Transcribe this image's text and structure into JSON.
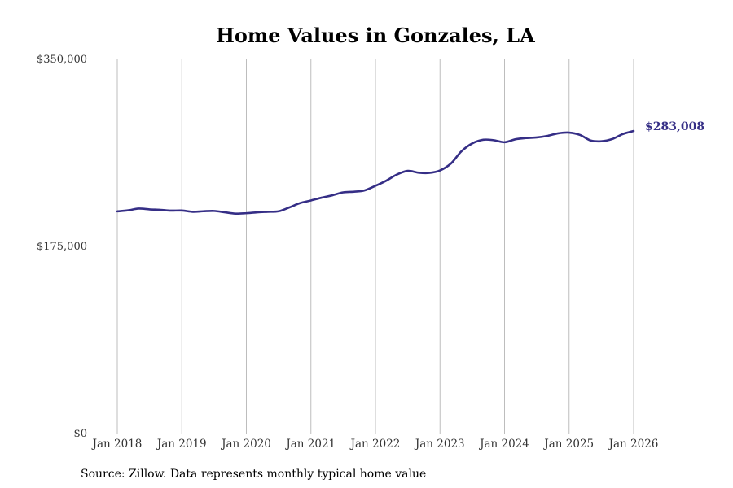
{
  "chart_data": {
    "type": "line",
    "title": "Home Values in Gonzales, LA",
    "xlabel": "",
    "ylabel": "",
    "ylim": [
      0,
      350000
    ],
    "y_ticks": [
      {
        "value": 0,
        "label": "$0"
      },
      {
        "value": 175000,
        "label": "$175,000"
      },
      {
        "value": 350000,
        "label": "$350,000"
      }
    ],
    "x_ticks": [
      {
        "value": 2018,
        "label": "Jan 2018"
      },
      {
        "value": 2019,
        "label": "Jan 2019"
      },
      {
        "value": 2020,
        "label": "Jan 2020"
      },
      {
        "value": 2021,
        "label": "Jan 2021"
      },
      {
        "value": 2022,
        "label": "Jan 2022"
      },
      {
        "value": 2023,
        "label": "Jan 2023"
      },
      {
        "value": 2024,
        "label": "Jan 2024"
      },
      {
        "value": 2025,
        "label": "Jan 2025"
      },
      {
        "value": 2026,
        "label": "Jan 2026"
      }
    ],
    "xlim": [
      2018,
      2026
    ],
    "grid": "vertical",
    "series": [
      {
        "name": "Typical home value",
        "color": "#352e86",
        "points": [
          [
            2018.0,
            207800
          ],
          [
            2018.17,
            208800
          ],
          [
            2018.33,
            210400
          ],
          [
            2018.5,
            209700
          ],
          [
            2018.67,
            209200
          ],
          [
            2018.83,
            208500
          ],
          [
            2019.0,
            208600
          ],
          [
            2019.17,
            207400
          ],
          [
            2019.33,
            207900
          ],
          [
            2019.5,
            208200
          ],
          [
            2019.67,
            206900
          ],
          [
            2019.83,
            205700
          ],
          [
            2020.0,
            206100
          ],
          [
            2020.17,
            206900
          ],
          [
            2020.33,
            207400
          ],
          [
            2020.5,
            207900
          ],
          [
            2020.67,
            211600
          ],
          [
            2020.83,
            215500
          ],
          [
            2021.0,
            218000
          ],
          [
            2021.17,
            220700
          ],
          [
            2021.33,
            222800
          ],
          [
            2021.5,
            225600
          ],
          [
            2021.67,
            226200
          ],
          [
            2021.83,
            227400
          ],
          [
            2022.0,
            231700
          ],
          [
            2022.17,
            236600
          ],
          [
            2022.33,
            242200
          ],
          [
            2022.5,
            245700
          ],
          [
            2022.67,
            244000
          ],
          [
            2022.83,
            243800
          ],
          [
            2023.0,
            246100
          ],
          [
            2023.17,
            252600
          ],
          [
            2023.33,
            263900
          ],
          [
            2023.5,
            271400
          ],
          [
            2023.67,
            274800
          ],
          [
            2023.83,
            274400
          ],
          [
            2024.0,
            272500
          ],
          [
            2024.17,
            275300
          ],
          [
            2024.33,
            276400
          ],
          [
            2024.5,
            277000
          ],
          [
            2024.67,
            278500
          ],
          [
            2024.83,
            280800
          ],
          [
            2025.0,
            281500
          ],
          [
            2025.17,
            279300
          ],
          [
            2025.33,
            274200
          ],
          [
            2025.5,
            273400
          ],
          [
            2025.67,
            275500
          ],
          [
            2025.83,
            280100
          ],
          [
            2026.0,
            283008
          ]
        ],
        "end_label": "$283,008"
      }
    ]
  },
  "source_note": "Source: Zillow. Data represents monthly typical home value"
}
